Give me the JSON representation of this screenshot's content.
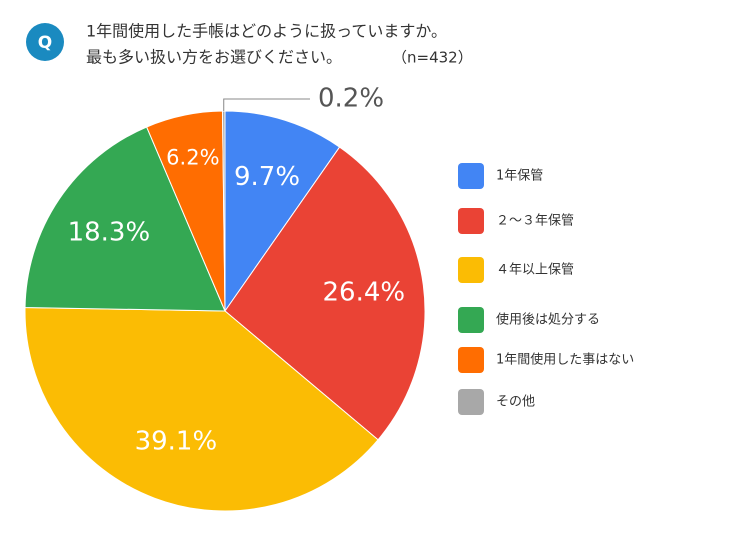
{
  "chart_data": {
    "type": "pie",
    "badge": "Q",
    "title": "1年間使用した手帳はどのように扱っていますか。",
    "subtitle": "最も多い扱い方をお選びください。",
    "sample_size": "（n=432）",
    "categories": [
      "1年保管",
      "２～３年保管",
      "４年以上保管",
      "使用後は処分する",
      "1年間使用した事はない",
      "その他"
    ],
    "values": [
      9.7,
      26.4,
      39.1,
      18.3,
      6.2,
      0.2
    ],
    "value_labels": [
      "9.7%",
      "26.4%",
      "39.1%",
      "18.3%",
      "6.2%",
      "0.2%"
    ],
    "colors": [
      "#4285f4",
      "#ea4335",
      "#fbbc04",
      "#34a853",
      "#ff6d01",
      "#a8a8a8"
    ],
    "legend": "right"
  }
}
